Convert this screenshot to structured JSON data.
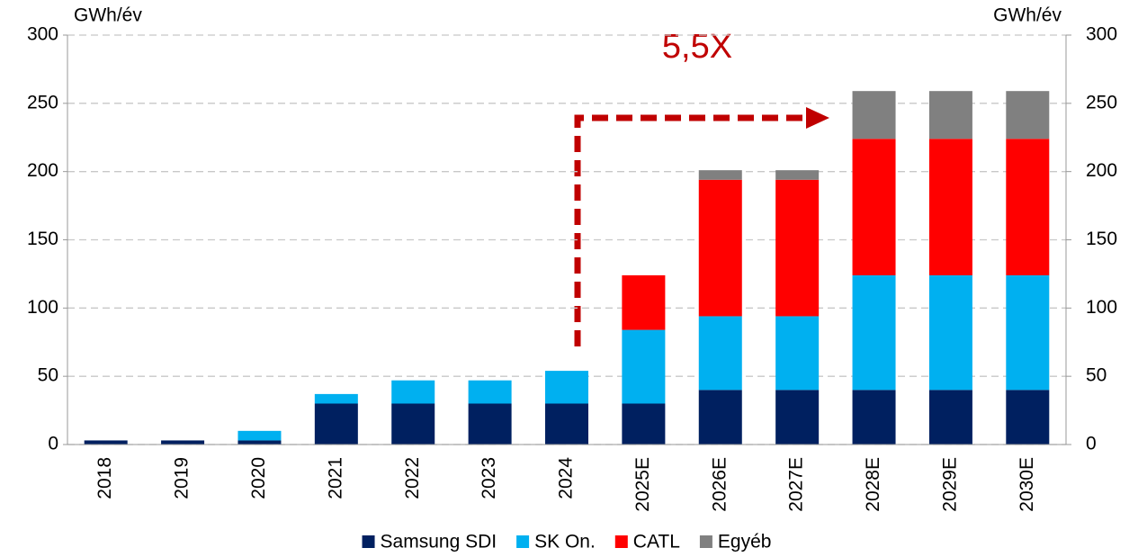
{
  "chart_data": {
    "type": "stacked_bar",
    "y_label": "GWh/év",
    "y2_label": "GWh/év",
    "annotation": "5,5X",
    "categories": [
      "2018",
      "2019",
      "2020",
      "2021",
      "2022",
      "2023",
      "2024",
      "2025E",
      "2026E",
      "2027E",
      "2028E",
      "2029E",
      "2030E"
    ],
    "series": [
      {
        "name": "Samsung SDI",
        "color": "#002060",
        "values": [
          3,
          3,
          3,
          30,
          30,
          30,
          30,
          30,
          40,
          40,
          40,
          40,
          40
        ]
      },
      {
        "name": "SK On.",
        "color": "#00b0f0",
        "values": [
          0,
          0,
          7,
          7,
          17,
          17,
          24,
          54,
          54,
          54,
          84,
          84,
          84
        ]
      },
      {
        "name": "CATL",
        "color": "#ff0000",
        "values": [
          0,
          0,
          0,
          0,
          0,
          0,
          0,
          40,
          100,
          100,
          100,
          100,
          100
        ]
      },
      {
        "name": "Egyéb",
        "color": "#808080",
        "values": [
          0,
          0,
          0,
          0,
          0,
          0,
          0,
          0,
          7,
          7,
          35,
          35,
          35
        ]
      }
    ],
    "ylim": [
      0,
      300
    ],
    "yticks": [
      0,
      50,
      100,
      150,
      200,
      250,
      300
    ],
    "y2lim": [
      0,
      300
    ],
    "y2ticks": [
      0,
      50,
      100,
      150,
      200,
      250,
      300
    ],
    "grid": true,
    "legend": "bottom"
  }
}
